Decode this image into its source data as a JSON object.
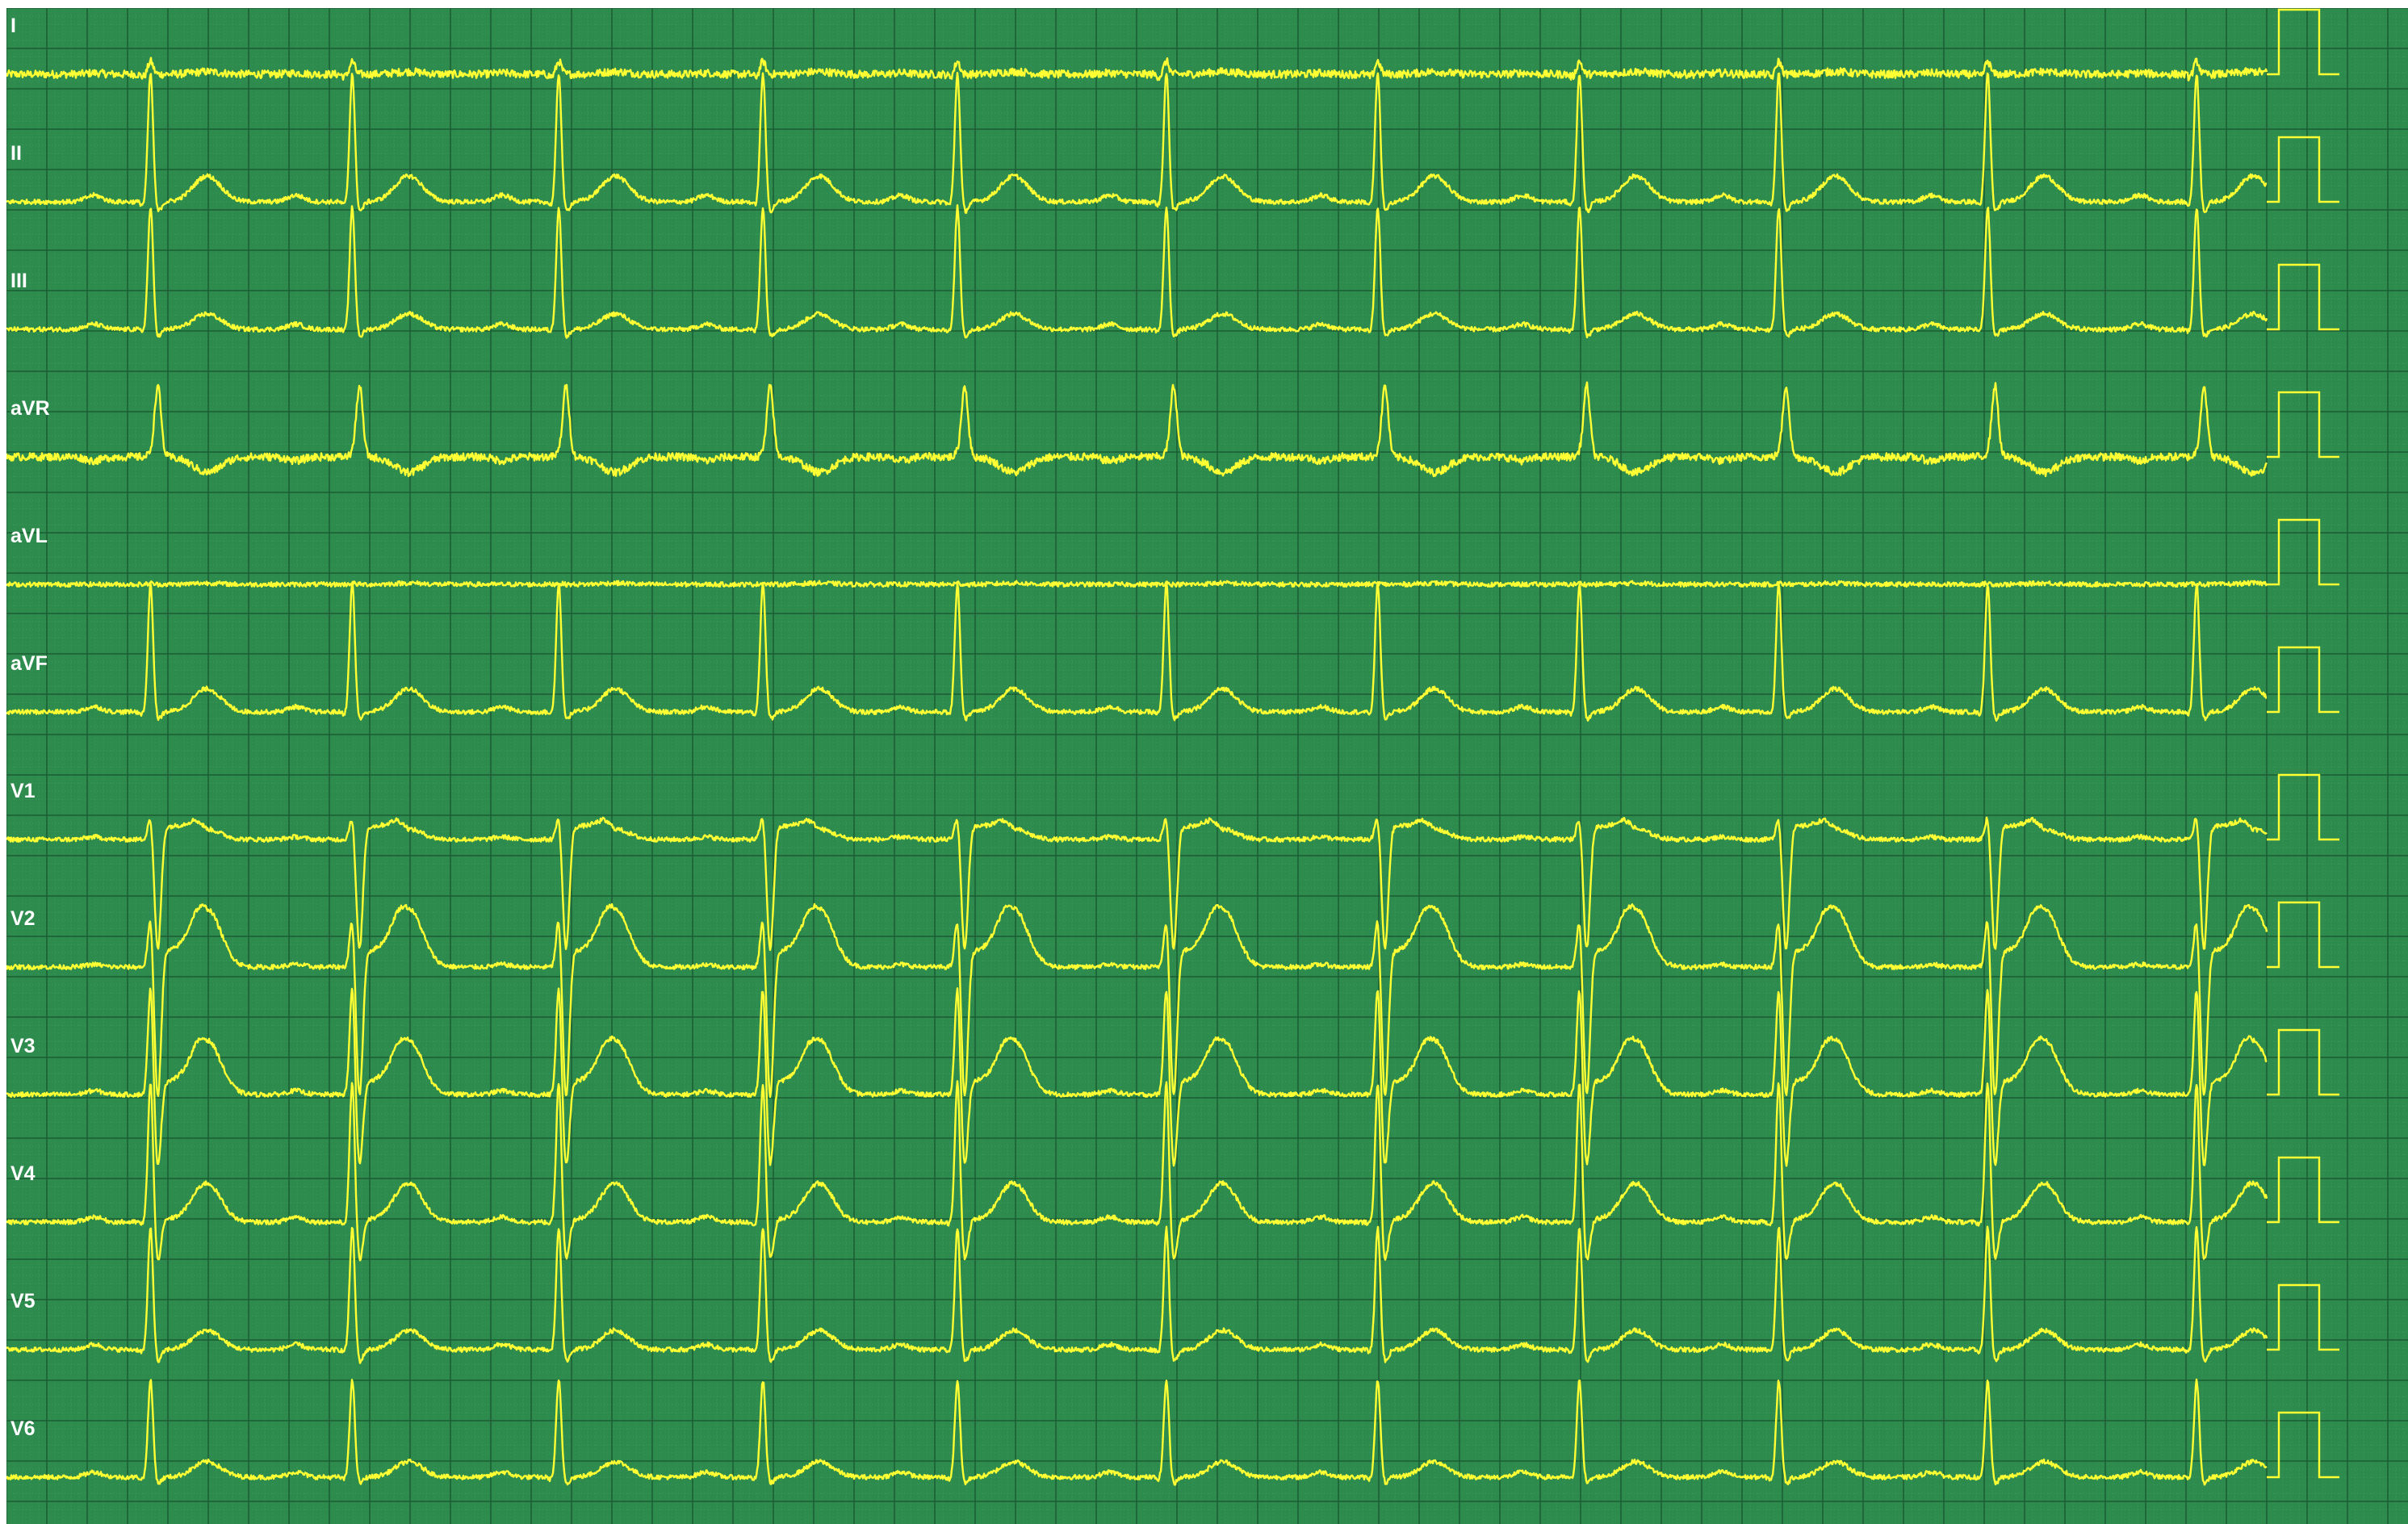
{
  "colors": {
    "background": "#2e8b4e",
    "grid_major": "#1c5c32",
    "grid_minor": "#3f9b5e",
    "trace": "#ffff33",
    "label": "#ffffff"
  },
  "leads": [
    {
      "label": "I",
      "r": 0.1,
      "s": 0.0,
      "q": 0.02,
      "t": 0.02,
      "p": 0.01,
      "st": 0.0
    },
    {
      "label": "II",
      "r": 1.0,
      "s": 0.08,
      "q": 0.03,
      "t": 0.2,
      "p": 0.05,
      "st": 0.0
    },
    {
      "label": "III",
      "r": 0.95,
      "s": 0.06,
      "q": 0.02,
      "t": 0.12,
      "p": 0.04,
      "st": 0.0
    },
    {
      "label": "aVR",
      "r": 0.02,
      "s": -0.55,
      "q": 0.0,
      "t": -0.12,
      "p": -0.03,
      "st": 0.0
    },
    {
      "label": "aVL",
      "r": 0.01,
      "s": 0.0,
      "q": 0.0,
      "t": 0.01,
      "p": 0.0,
      "st": 0.0
    },
    {
      "label": "aVF",
      "r": 1.0,
      "s": 0.06,
      "q": 0.02,
      "t": 0.18,
      "p": 0.04,
      "st": 0.0
    },
    {
      "label": "V1",
      "r": 0.2,
      "s": 0.85,
      "q": 0.0,
      "t": 0.08,
      "p": 0.02,
      "st": 0.1
    },
    {
      "label": "V2",
      "r": 0.4,
      "s": 1.0,
      "q": 0.0,
      "t": 0.45,
      "p": 0.02,
      "st": 0.12
    },
    {
      "label": "V3",
      "r": 0.85,
      "s": 0.55,
      "q": 0.0,
      "t": 0.42,
      "p": 0.03,
      "st": 0.1
    },
    {
      "label": "V4",
      "r": 1.1,
      "s": 0.3,
      "q": 0.02,
      "t": 0.3,
      "p": 0.04,
      "st": 0.02
    },
    {
      "label": "V5",
      "r": 0.95,
      "s": 0.1,
      "q": 0.02,
      "t": 0.15,
      "p": 0.04,
      "st": 0.0
    },
    {
      "label": "V6",
      "r": 0.75,
      "s": 0.05,
      "q": 0.02,
      "t": 0.12,
      "p": 0.04,
      "st": 0.0
    }
  ],
  "beats_norm": [
    0.06,
    0.144,
    0.23,
    0.315,
    0.396,
    0.483,
    0.571,
    0.655,
    0.738,
    0.825,
    0.912
  ],
  "calibration": {
    "amplitude": 1.0
  }
}
